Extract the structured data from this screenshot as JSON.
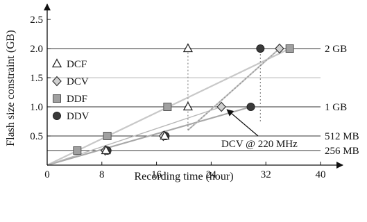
{
  "chart_data": {
    "type": "scatter",
    "xlabel": "Recording time (hour)",
    "ylabel": "Flash size constraint (GB)",
    "xlim": [
      0,
      40
    ],
    "ylim": [
      0,
      2.5
    ],
    "x_ticks": [
      0,
      8,
      16,
      24,
      32,
      40
    ],
    "x_tick_labels": [
      "0",
      "8",
      "16",
      "24",
      "32",
      "40"
    ],
    "y_ticks": [
      0.5,
      1.0,
      1.5,
      2.0,
      2.5
    ],
    "y_tick_labels": [
      "0.5",
      "1.0",
      "1.5",
      "2.0",
      "2.5"
    ],
    "grid": "horizontal at each y tick",
    "reference_lines": [
      {
        "y": 2.0,
        "label": "2 GB",
        "style": "solid-dark"
      },
      {
        "y": 1.5,
        "label": "",
        "style": "solid-light"
      },
      {
        "y": 1.0,
        "label": "1 GB",
        "style": "solid-dark"
      },
      {
        "y": 0.5,
        "label": "512 MB",
        "style": "solid-dark"
      },
      {
        "y": 0.25,
        "label": "256 MB",
        "style": "solid-dark"
      }
    ],
    "legend": {
      "position": "left-middle"
    },
    "series": [
      {
        "name": "DCF",
        "marker": "triangle",
        "color": "#ffffff",
        "stroke": "#222222",
        "points": [
          [
            8.6,
            0.25
          ],
          [
            17.2,
            0.5
          ],
          [
            20.6,
            1.0
          ],
          [
            20.6,
            2.0
          ]
        ]
      },
      {
        "name": "DCV",
        "marker": "diamond",
        "color": "#d0d0d0",
        "stroke": "#333333",
        "points": [
          [
            8.5,
            0.25
          ],
          [
            17.0,
            0.5
          ],
          [
            25.5,
            1.0
          ],
          [
            34.0,
            2.0
          ]
        ]
      },
      {
        "name": "DDF",
        "marker": "square",
        "color": "#a0a0a0",
        "stroke": "#555555",
        "points": [
          [
            4.4,
            0.25
          ],
          [
            8.8,
            0.5
          ],
          [
            17.6,
            1.0
          ],
          [
            35.5,
            2.0
          ]
        ]
      },
      {
        "name": "DDV",
        "marker": "circle",
        "color": "#3a3a3a",
        "stroke": "#222222",
        "points": [
          [
            8.8,
            0.25
          ],
          [
            17.3,
            0.5
          ],
          [
            29.8,
            1.0
          ],
          [
            31.2,
            2.0
          ]
        ]
      }
    ],
    "trend_lines": [
      {
        "from": [
          0,
          0
        ],
        "to": [
          35.5,
          2.0
        ],
        "color": "#c8c8c8",
        "width": 2.2,
        "dash": ""
      },
      {
        "from": [
          0,
          0
        ],
        "to": [
          29.8,
          1.0
        ],
        "color": "#a8a8a8",
        "width": 2.2,
        "dash": ""
      },
      {
        "from": [
          0,
          0
        ],
        "to": [
          25.5,
          1.0
        ],
        "color": "#b8b8b8",
        "width": 1.4,
        "dash": ""
      },
      {
        "from": [
          20.6,
          0.6
        ],
        "to": [
          34.0,
          2.0
        ],
        "color": "#c0c0c0",
        "width": 2.2,
        "dash": ""
      },
      {
        "from": [
          20.6,
          0.6
        ],
        "to": [
          34.0,
          2.0
        ],
        "color": "#999999",
        "width": 1.6,
        "dash": "2,3"
      },
      {
        "from": [
          20.6,
          0.6
        ],
        "to": [
          20.6,
          2.0
        ],
        "color": "#888888",
        "width": 1.2,
        "dash": "2,3"
      },
      {
        "from": [
          31.2,
          0.75
        ],
        "to": [
          31.2,
          2.0
        ],
        "color": "#888888",
        "width": 1.2,
        "dash": "2,3"
      }
    ],
    "annotations": [
      {
        "text": "DCV @ 220 MHz",
        "points_to": [
          25.5,
          1.0
        ]
      }
    ]
  }
}
